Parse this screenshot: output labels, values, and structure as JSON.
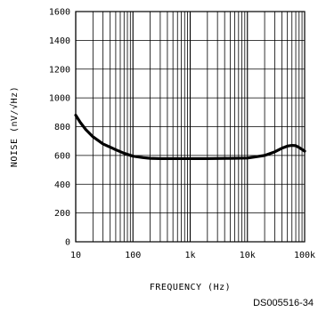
{
  "chart_data": {
    "type": "line",
    "title": "",
    "xlabel": "FREQUENCY (Hz)",
    "ylabel": "NOISE (nV/√Hz)",
    "xscale": "log",
    "xlim": [
      10,
      100000
    ],
    "ylim": [
      0,
      1600
    ],
    "x_tick_values": [
      10,
      100,
      1000,
      10000,
      100000
    ],
    "x_tick_labels": [
      "10",
      "100",
      "1k",
      "10k",
      "100k"
    ],
    "y_tick_values": [
      0,
      200,
      400,
      600,
      800,
      1000,
      1200,
      1400,
      1600
    ],
    "y_tick_labels": [
      "0",
      "200",
      "400",
      "600",
      "800",
      "1000",
      "1200",
      "1400",
      "1600"
    ],
    "grid": true,
    "series": [
      {
        "x": [
          10,
          12,
          15,
          20,
          30,
          50,
          70,
          100,
          150,
          200,
          300,
          500,
          1000,
          2000,
          5000,
          10000,
          20000,
          30000,
          40000,
          50000,
          60000,
          70000,
          80000,
          100000
        ],
        "y": [
          880,
          830,
          780,
          730,
          680,
          640,
          615,
          595,
          585,
          580,
          578,
          578,
          578,
          578,
          580,
          582,
          600,
          625,
          650,
          665,
          670,
          668,
          655,
          630
        ]
      }
    ],
    "annotations": [
      "DS005516-34"
    ]
  }
}
